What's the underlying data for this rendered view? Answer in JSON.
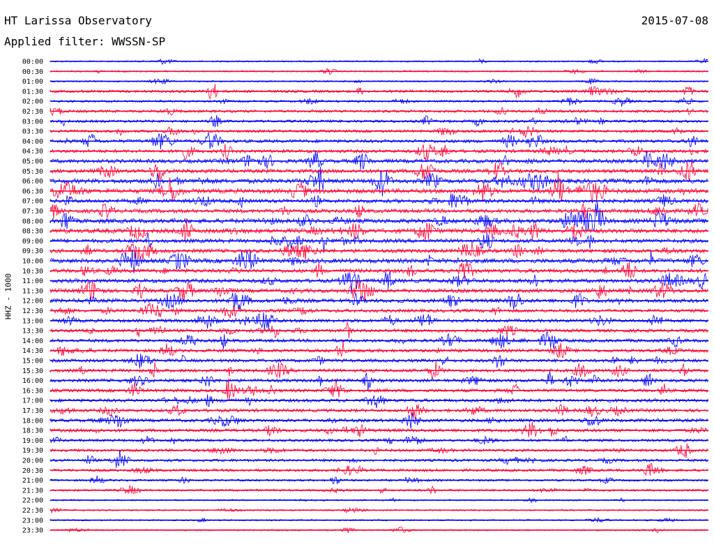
{
  "header": {
    "title": "HT Larissa Observatory",
    "date": "2015-07-08",
    "filter": "Applied filter: WWSSN-SP"
  },
  "chart_data": {
    "type": "line",
    "ylabel": "HHZ - 1000",
    "row_labels": [
      "00:00",
      "00:30",
      "01:00",
      "01:30",
      "02:00",
      "02:30",
      "03:00",
      "03:30",
      "04:00",
      "04:30",
      "05:00",
      "05:30",
      "06:00",
      "06:30",
      "07:00",
      "07:30",
      "08:00",
      "08:30",
      "09:00",
      "09:30",
      "10:00",
      "10:30",
      "11:00",
      "11:30",
      "12:00",
      "12:30",
      "13:00",
      "13:30",
      "14:00",
      "14:30",
      "15:00",
      "15:30",
      "16:00",
      "16:30",
      "17:00",
      "17:30",
      "18:00",
      "18:30",
      "19:00",
      "19:30",
      "20:00",
      "20:30",
      "21:00",
      "21:30",
      "22:00",
      "22:30",
      "23:00",
      "23:30"
    ],
    "row_amplitude": [
      1,
      1,
      1,
      3,
      2,
      3,
      3,
      3,
      4,
      4,
      5,
      5,
      6,
      6,
      5,
      5,
      6,
      6,
      5,
      5,
      6,
      5,
      5,
      5,
      5,
      4,
      4,
      4,
      4,
      4,
      4,
      4,
      4,
      4,
      4,
      4,
      4,
      4,
      3,
      3,
      3,
      3,
      2,
      2,
      1,
      1,
      1,
      1
    ],
    "series_colors": [
      "#0000ff",
      "#ff0033"
    ],
    "grid": false
  }
}
